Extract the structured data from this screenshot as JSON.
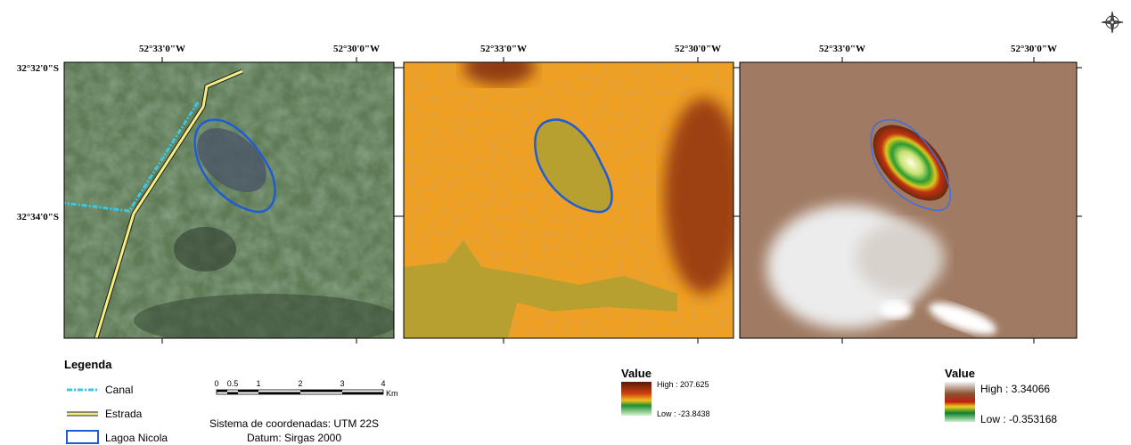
{
  "panels": [
    {
      "x_labels": [
        "52°33'0\"W",
        "52°30'0\"W"
      ],
      "y_labels": [
        "32°32'0\"S",
        "32°34'0\"S"
      ]
    },
    {
      "x_labels": [
        "52°33'0\"W",
        "52°30'0\"W"
      ]
    },
    {
      "x_labels": [
        "52°33'0\"W",
        "52°30'0\"W"
      ]
    }
  ],
  "legend": {
    "title": "Legenda",
    "items": [
      "Canal",
      "Estrada",
      "Lagoa Nicola"
    ]
  },
  "scale_bar": {
    "ticks": [
      "0",
      "0.5",
      "1",
      "2",
      "3",
      "4"
    ],
    "unit": "Km"
  },
  "coordinate_system": [
    "Sistema de coordenadas: UTM 22S",
    "Datum: Sirgas 2000"
  ],
  "ramps": [
    {
      "title": "Value",
      "high": "High : 207.625",
      "low": "Low : -23.8438"
    },
    {
      "title": "Value",
      "high": "High : 3.34066",
      "low": "Low : -0.353168"
    }
  ]
}
